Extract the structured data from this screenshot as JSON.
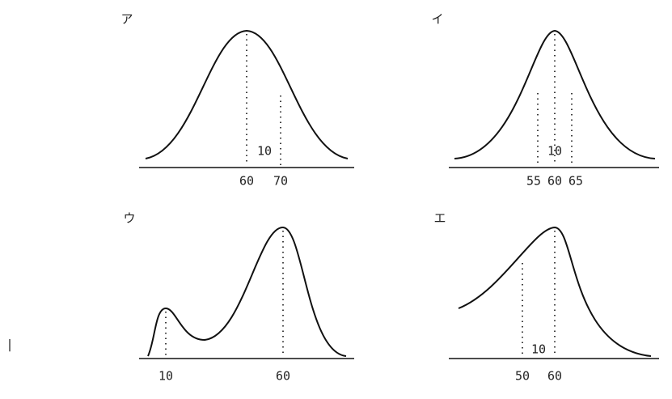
{
  "mark": "|",
  "panels": [
    {
      "label": "ア",
      "ticks": [
        60,
        70
      ],
      "annotation": 10
    },
    {
      "label": "イ",
      "ticks": [
        55,
        60,
        65
      ],
      "annotation": 10
    },
    {
      "label": "ウ",
      "ticks": [
        10,
        60
      ]
    },
    {
      "label": "エ",
      "ticks": [
        50,
        60
      ],
      "annotation": 10
    }
  ]
}
